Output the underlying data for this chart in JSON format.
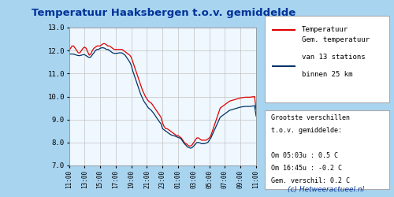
{
  "title": "Temperatuur Haaksbergen t.o.v. gemiddelde",
  "title_color": "#003399",
  "background_outer": "#a8d4f0",
  "background_plot": "#f0f8ff",
  "background_legend": "#ffffff",
  "background_info": "#ffffff",
  "ylim": [
    7.0,
    13.0
  ],
  "yticks": [
    7.0,
    8.0,
    9.0,
    10.0,
    11.0,
    12.0,
    13.0
  ],
  "xtick_labels": [
    "11:00",
    "13:00",
    "15:00",
    "17:00",
    "19:00",
    "21:00",
    "23:00",
    "01:00",
    "03:00",
    "05:00",
    "07:00",
    "09:00",
    "11:00"
  ],
  "line_red_color": "#dd0000",
  "line_blue_color": "#003366",
  "legend_line1": "Temperatuur",
  "legend_line2_l1": "Gem. temperatuur",
  "legend_line2_l2": "van 13 stations",
  "legend_line2_l3": "binnen 25 km",
  "info_line1": "Grootste verschillen",
  "info_line2": "t.o.v. gemiddelde:",
  "info_line3": "",
  "info_line4": "Om 05:03u : 0.5 C",
  "info_line5": "Om 16:45u : -0.2 C",
  "info_line6": "Gem. verschil: 0.2 C",
  "credit_text": "(c) Hetweeractueel.nl",
  "credit_color": "#003399",
  "red_y": [
    12.0,
    12.1,
    12.2,
    12.2,
    12.1,
    12.0,
    11.9,
    11.9,
    12.0,
    12.1,
    12.15,
    12.1,
    11.95,
    11.8,
    11.85,
    12.0,
    12.1,
    12.15,
    12.2,
    12.2,
    12.2,
    12.25,
    12.3,
    12.3,
    12.25,
    12.2,
    12.2,
    12.15,
    12.1,
    12.05,
    12.05,
    12.05,
    12.05,
    12.05,
    12.05,
    12.0,
    11.95,
    11.9,
    11.85,
    11.8,
    11.7,
    11.5,
    11.3,
    11.1,
    10.9,
    10.7,
    10.5,
    10.3,
    10.15,
    10.0,
    9.9,
    9.8,
    9.75,
    9.7,
    9.6,
    9.5,
    9.4,
    9.3,
    9.2,
    9.1,
    8.85,
    8.7,
    8.6,
    8.6,
    8.55,
    8.5,
    8.45,
    8.4,
    8.35,
    8.3,
    8.3,
    8.25,
    8.2,
    8.1,
    8.0,
    7.95,
    7.9,
    7.85,
    7.85,
    7.9,
    8.0,
    8.1,
    8.2,
    8.2,
    8.15,
    8.1,
    8.1,
    8.1,
    8.1,
    8.15,
    8.2,
    8.3,
    8.5,
    8.7,
    8.9,
    9.1,
    9.3,
    9.5,
    9.55,
    9.6,
    9.65,
    9.7,
    9.75,
    9.8,
    9.82,
    9.84,
    9.86,
    9.88,
    9.9,
    9.92,
    9.94,
    9.95,
    9.96,
    9.97,
    9.97,
    9.97,
    9.97,
    9.98,
    9.99,
    10.0,
    9.45
  ],
  "blue_y": [
    11.85,
    11.85,
    11.85,
    11.85,
    11.82,
    11.8,
    11.78,
    11.78,
    11.8,
    11.82,
    11.82,
    11.78,
    11.73,
    11.7,
    11.72,
    11.82,
    11.9,
    12.0,
    12.05,
    12.05,
    12.1,
    12.12,
    12.12,
    12.1,
    12.05,
    12.05,
    12.0,
    11.95,
    11.9,
    11.88,
    11.88,
    11.88,
    11.9,
    11.9,
    11.9,
    11.85,
    11.8,
    11.7,
    11.6,
    11.5,
    11.35,
    11.1,
    10.9,
    10.7,
    10.5,
    10.3,
    10.1,
    9.95,
    9.8,
    9.7,
    9.6,
    9.5,
    9.45,
    9.38,
    9.3,
    9.2,
    9.1,
    9.0,
    8.9,
    8.82,
    8.6,
    8.55,
    8.5,
    8.45,
    8.4,
    8.35,
    8.32,
    8.3,
    8.28,
    8.25,
    8.22,
    8.2,
    8.15,
    8.05,
    7.95,
    7.88,
    7.8,
    7.78,
    7.75,
    7.78,
    7.85,
    7.92,
    8.0,
    8.0,
    7.98,
    7.95,
    7.95,
    7.95,
    7.98,
    8.0,
    8.1,
    8.2,
    8.35,
    8.5,
    8.65,
    8.8,
    8.95,
    9.1,
    9.15,
    9.2,
    9.25,
    9.3,
    9.35,
    9.4,
    9.42,
    9.44,
    9.46,
    9.48,
    9.5,
    9.52,
    9.54,
    9.55,
    9.56,
    9.57,
    9.57,
    9.57,
    9.57,
    9.58,
    9.59,
    9.6,
    9.15
  ]
}
